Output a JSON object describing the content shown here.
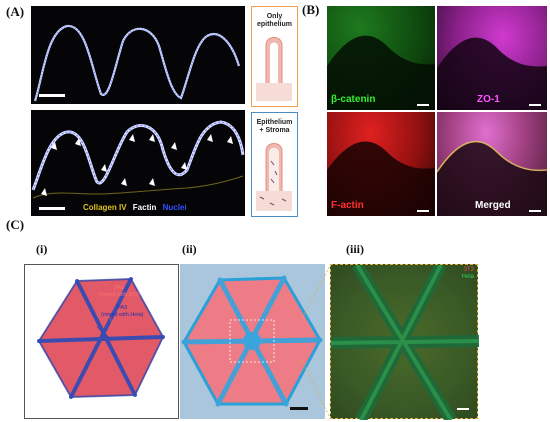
{
  "panel_A": {
    "label": "(A)",
    "box_top_title_line1": "Only",
    "box_top_title_line2": "epithelium",
    "box_bottom_title_line1": "Epithelium",
    "box_bottom_title_line2": "+ Stroma",
    "legend": {
      "collagen": "Collagen IV",
      "factin": "Factin",
      "nuclei": "Nuclei"
    },
    "colors": {
      "box_top": "#f0a050",
      "box_bottom": "#4a8ec8",
      "collagen": "#e0c020",
      "factin": "#ffffff",
      "nuclei": "#3050ff"
    }
  },
  "panel_B": {
    "label": "(B)",
    "channels": {
      "beta_catenin": "β-catenin",
      "zo1": "ZO-1",
      "factin": "F-actin",
      "merged": "Merged"
    },
    "colors": {
      "beta_catenin": "#22dd22",
      "zo1": "#e040e0",
      "factin": "#ff2020"
    }
  },
  "panel_C": {
    "label": "(C)",
    "sub_i": "(i)",
    "sub_ii": "(ii)",
    "sub_iii": "(iii)",
    "pa1_line1": "PA1",
    "pa1_line2": "(mixed with 3T3)",
    "pa3_line1": "PA3",
    "pa3_line2": "(mixed with Hela)",
    "fluor_label_1": "3T3",
    "fluor_label_2": "Hela",
    "colors": {
      "pa1": "#ee5566",
      "pa3": "#2244bb",
      "hela": "#33cc55"
    }
  }
}
